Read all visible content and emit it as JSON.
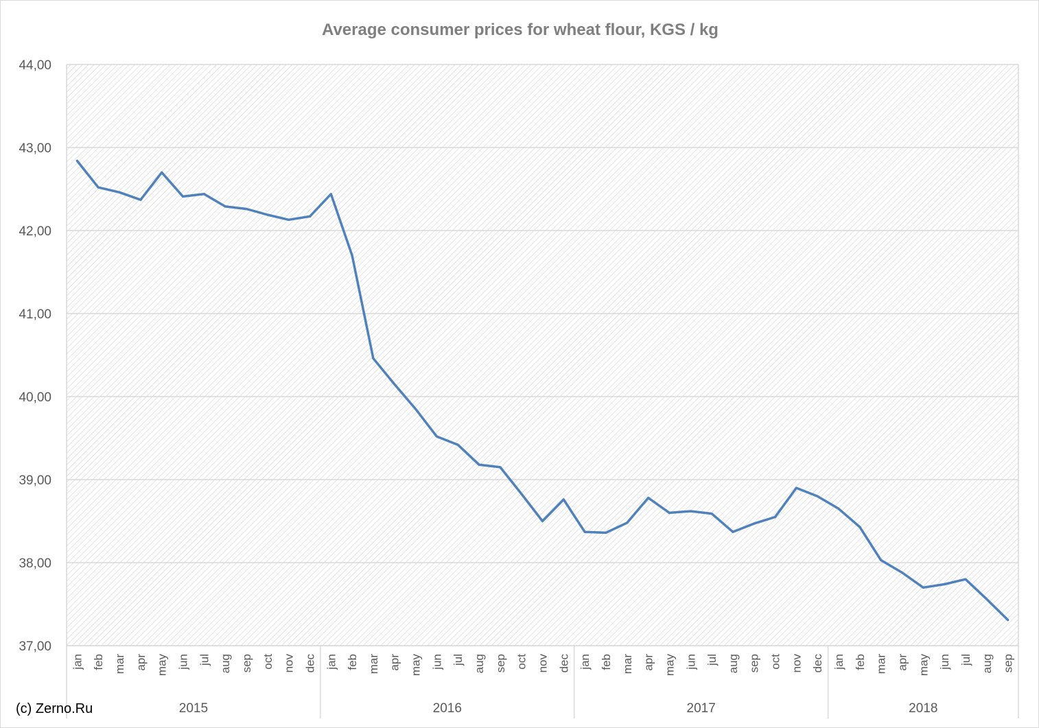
{
  "credit": "(c) Zerno.Ru",
  "colors": {
    "line": "#4f81bd",
    "grid": "#d9d9d9",
    "hatch": "#c8c8c8",
    "text": "#595959",
    "title": "#7f7f7f"
  },
  "chart_data": {
    "type": "line",
    "title": "Average consumer prices for wheat flour, KGS / kg",
    "xlabel": "",
    "ylabel": "",
    "ylim": [
      37,
      44
    ],
    "yticks": [
      "44,00",
      "43,00",
      "42,00",
      "41,00",
      "40,00",
      "39,00",
      "38,00",
      "37,00"
    ],
    "grid": true,
    "plot_background": "diagonal hatch",
    "categories": [
      "jan",
      "feb",
      "mar",
      "apr",
      "may",
      "jun",
      "jul",
      "aug",
      "sep",
      "oct",
      "nov",
      "dec",
      "jan",
      "feb",
      "mar",
      "apr",
      "may",
      "jun",
      "jul",
      "aug",
      "sep",
      "oct",
      "nov",
      "dec",
      "jan",
      "feb",
      "mar",
      "apr",
      "may",
      "jun",
      "jul",
      "aug",
      "sep",
      "oct",
      "nov",
      "dec",
      "jan",
      "feb",
      "mar",
      "apr",
      "may",
      "jun",
      "jul",
      "aug",
      "sep"
    ],
    "groups": [
      {
        "label": "2015",
        "count": 12
      },
      {
        "label": "2016",
        "count": 12
      },
      {
        "label": "2017",
        "count": 12
      },
      {
        "label": "2018",
        "count": 9
      }
    ],
    "series": [
      {
        "values": [
          42.84,
          42.52,
          42.46,
          42.37,
          42.7,
          42.41,
          42.44,
          42.29,
          42.26,
          42.19,
          42.13,
          42.17,
          42.44,
          41.7,
          40.46,
          40.15,
          39.85,
          39.52,
          39.42,
          39.18,
          39.15,
          38.83,
          38.5,
          38.76,
          38.37,
          38.36,
          38.48,
          38.78,
          38.6,
          38.62,
          38.59,
          38.37,
          38.47,
          38.55,
          38.9,
          38.8,
          38.65,
          38.43,
          38.03,
          37.88,
          37.7,
          37.74,
          37.8,
          37.56,
          37.31
        ]
      }
    ]
  }
}
